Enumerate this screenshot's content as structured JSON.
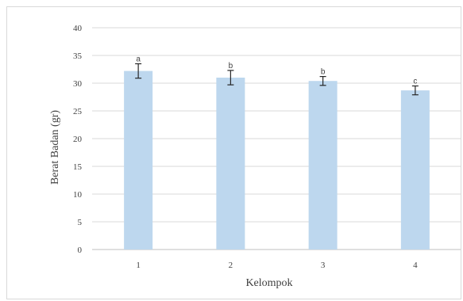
{
  "chart_data": {
    "type": "bar",
    "title": "",
    "xlabel": "Kelompok",
    "ylabel": "Berat Badan (gr)",
    "categories": [
      "1",
      "2",
      "3",
      "4"
    ],
    "values": [
      32.2,
      31.0,
      30.4,
      28.7
    ],
    "error": [
      1.3,
      1.3,
      0.8,
      0.8
    ],
    "significance_labels": [
      "a",
      "b",
      "b",
      "c"
    ],
    "ylim": [
      0,
      40
    ],
    "yticks": [
      0,
      5,
      10,
      15,
      20,
      25,
      30,
      35,
      40
    ],
    "grid": true,
    "bar_color": "#bdd7ee",
    "error_bar_color": "#262626",
    "grid_color": "#d9d9d9"
  }
}
